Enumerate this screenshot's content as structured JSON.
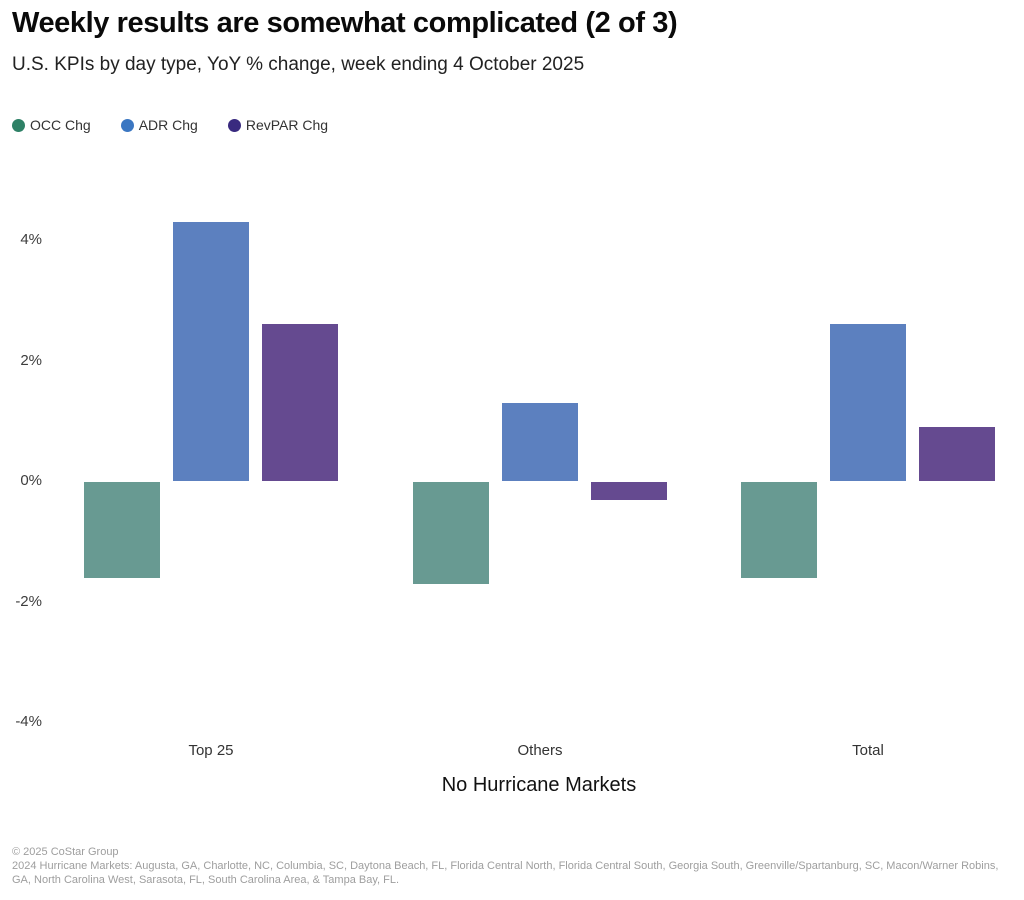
{
  "chart_data": {
    "type": "bar",
    "title": "Weekly results are somewhat complicated (2 of 3)",
    "subtitle": "U.S. KPIs by day type, YoY % change, week ending 4 October 2025",
    "categories": [
      "Top 25",
      "Others",
      "Total"
    ],
    "series": [
      {
        "name": "OCC Chg",
        "color": "#689a92",
        "legend_color": "#2e8166",
        "values": [
          -1.6,
          -1.7,
          -1.6
        ]
      },
      {
        "name": "ADR Chg",
        "color": "#5c80bf",
        "legend_color": "#3b77c2",
        "values": [
          4.3,
          1.3,
          2.6
        ]
      },
      {
        "name": "RevPAR Chg",
        "color": "#654a90",
        "legend_color": "#392a7f",
        "values": [
          2.6,
          -0.3,
          0.9
        ]
      }
    ],
    "xlabel": "No Hurricane Markets",
    "ylabel": "",
    "ytick_values": [
      4,
      2,
      0,
      -2,
      -4
    ],
    "ytick_labels": [
      "4%",
      "2%",
      "0%",
      "-2%",
      "-4%"
    ],
    "ylim": [
      -4.6,
      4.6
    ],
    "grid": false,
    "legend_position": "top-left",
    "background_color": "#ffffff"
  },
  "footer": {
    "copyright": "© 2025 CoStar Group",
    "note": "2024 Hurricane Markets: Augusta, GA, Charlotte, NC, Columbia, SC, Daytona Beach, FL, Florida Central North, Florida Central South, Georgia South, Greenville/Spartanburg, SC, Macon/Warner Robins, GA, North Carolina West, Sarasota, FL, South Carolina Area, & Tampa Bay, FL."
  }
}
